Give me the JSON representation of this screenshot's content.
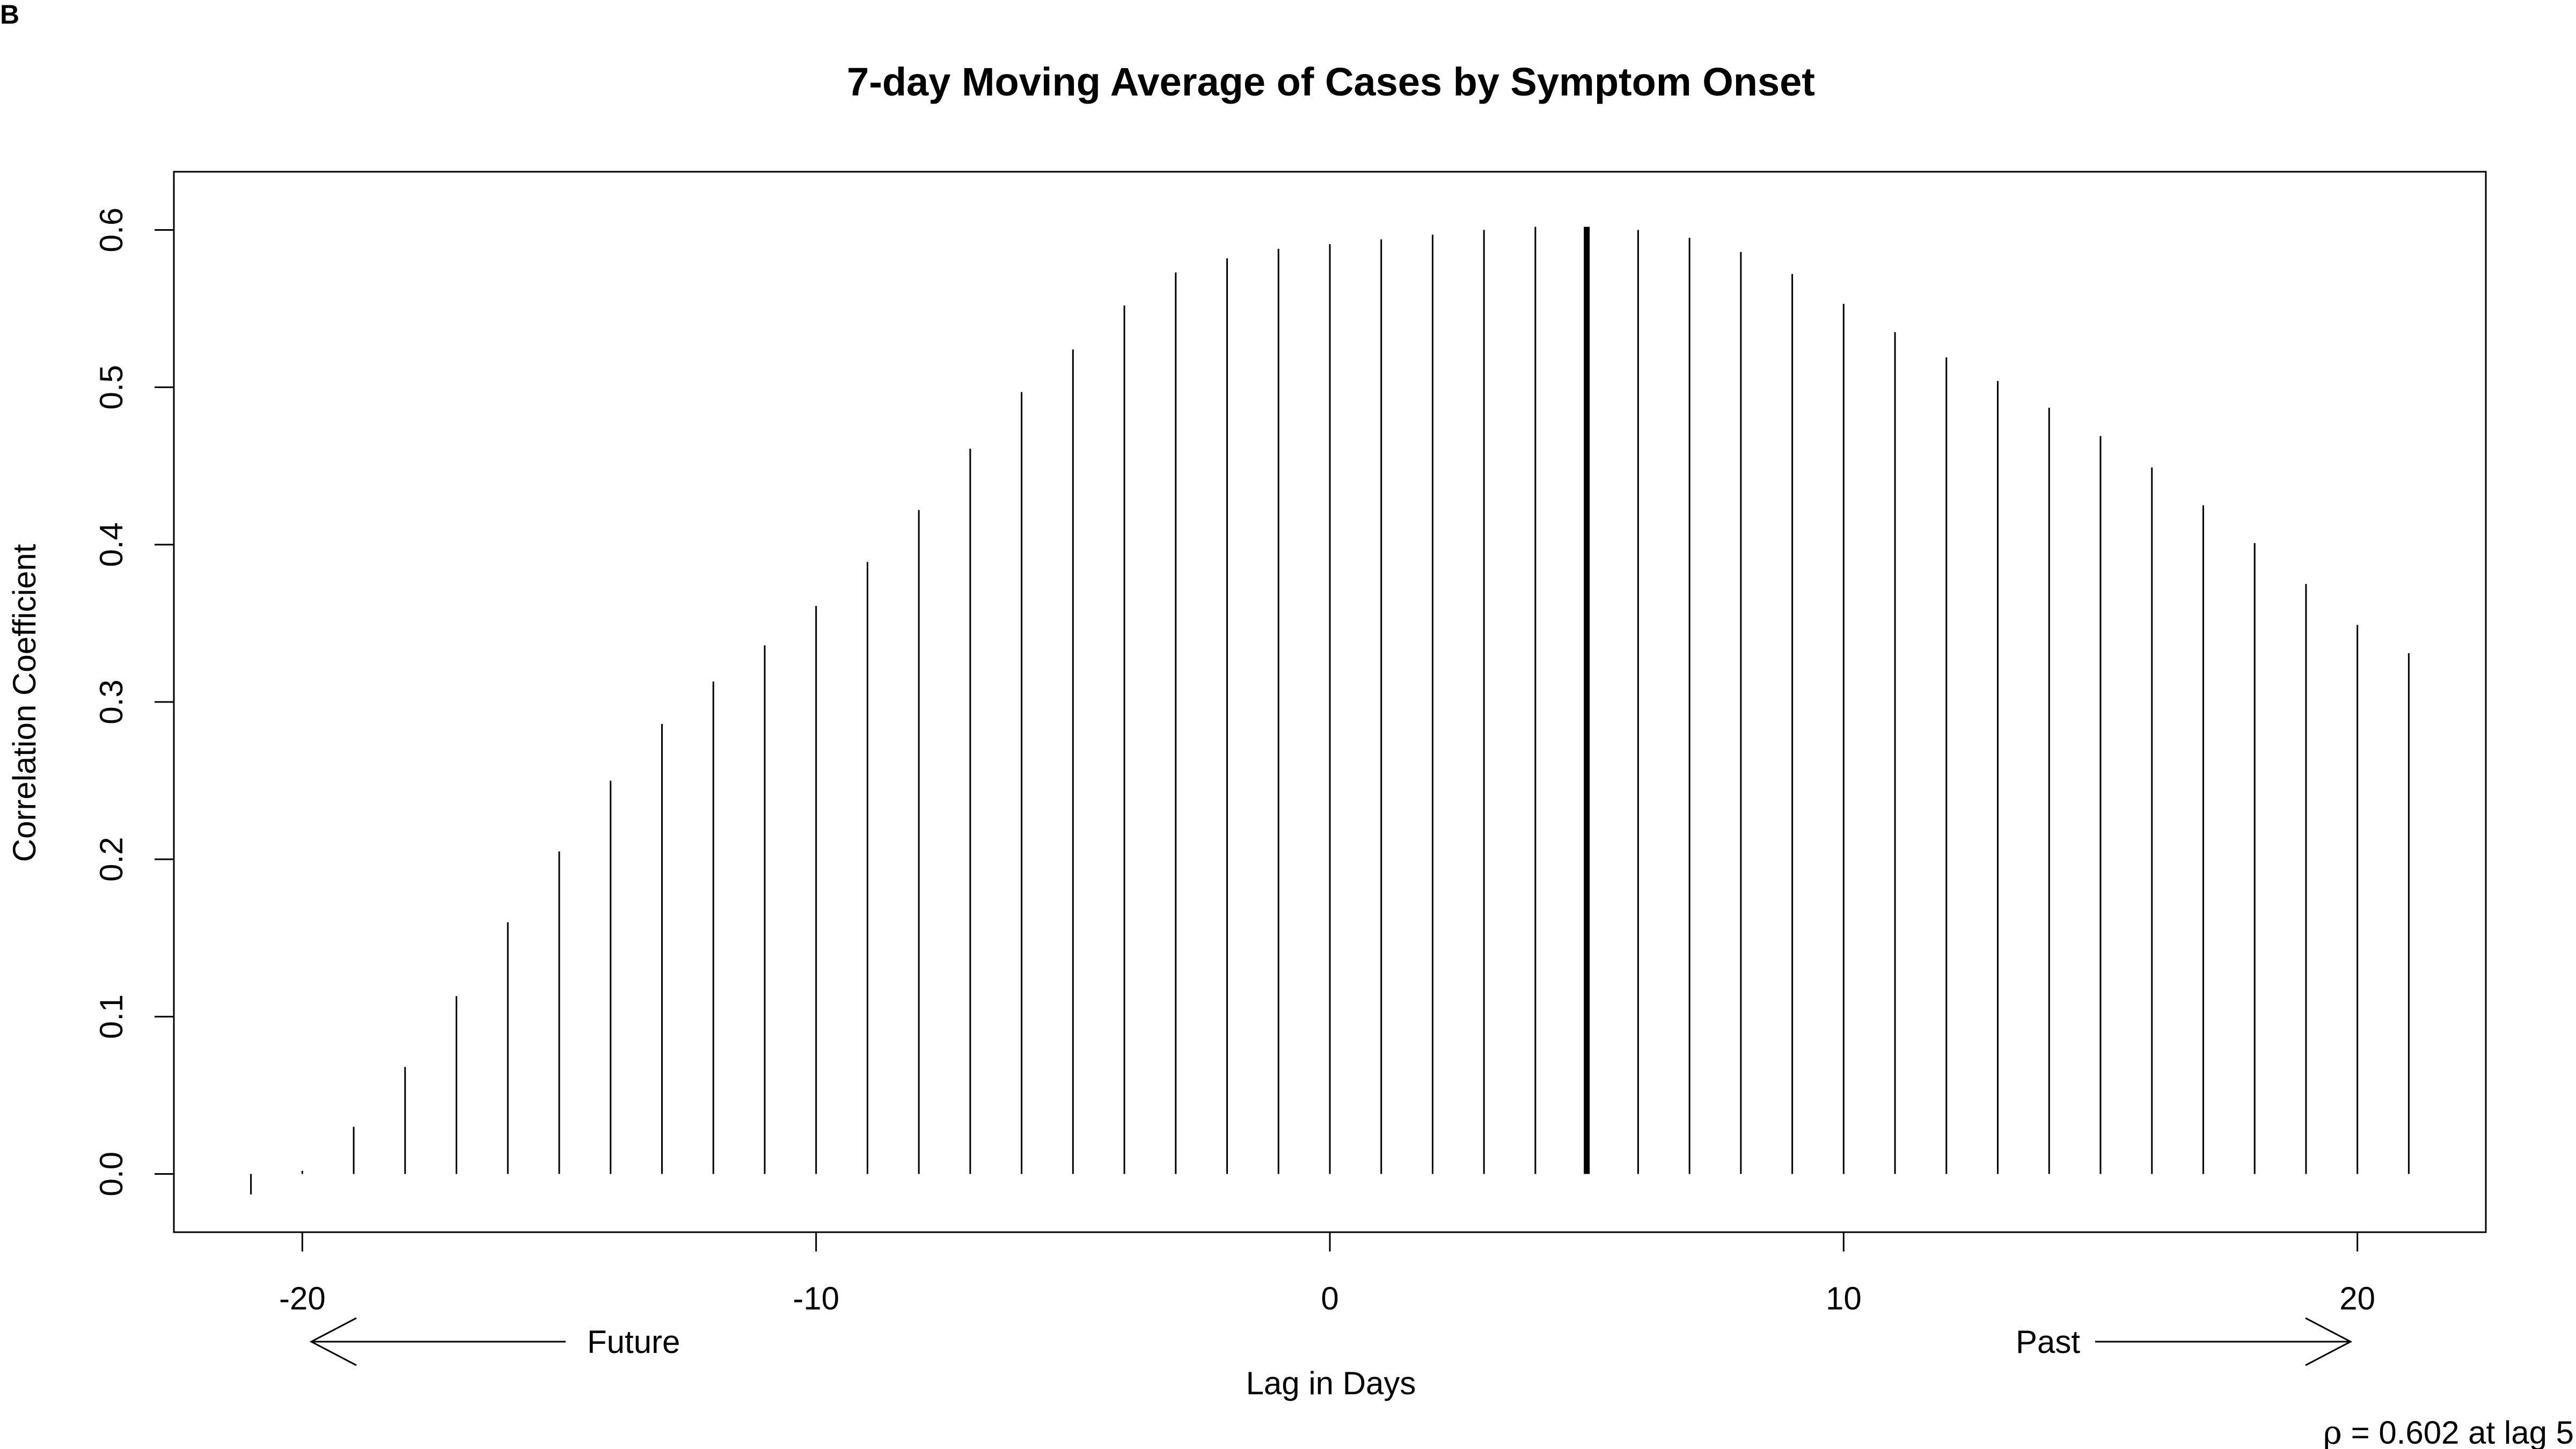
{
  "panel_label": "B",
  "chart_data": {
    "type": "bar",
    "title": "7-day Moving Average of Cases by Symptom Onset",
    "xlabel": "Lag in Days",
    "ylabel": "Correlation Coefficient",
    "xlim": [
      -22.5,
      22.5
    ],
    "ylim": [
      -0.037,
      0.637
    ],
    "x_ticks": [
      -20,
      -10,
      0,
      10,
      20
    ],
    "x_tick_labels": [
      "-20",
      "-10",
      "0",
      "10",
      "20"
    ],
    "y_ticks": [
      0.0,
      0.1,
      0.2,
      0.3,
      0.4,
      0.5,
      0.6
    ],
    "y_tick_labels": [
      "0.0",
      "0.1",
      "0.2",
      "0.3",
      "0.4",
      "0.5",
      "0.6"
    ],
    "grid": false,
    "lags": [
      -21,
      -20,
      -19,
      -18,
      -17,
      -16,
      -15,
      -14,
      -13,
      -12,
      -11,
      -10,
      -9,
      -8,
      -7,
      -6,
      -5,
      -4,
      -3,
      -2,
      -1,
      0,
      1,
      2,
      3,
      4,
      5,
      6,
      7,
      8,
      9,
      10,
      11,
      12,
      13,
      14,
      15,
      16,
      17,
      18,
      19,
      20,
      21
    ],
    "values": [
      -0.013,
      0.002,
      0.03,
      0.068,
      0.113,
      0.16,
      0.205,
      0.25,
      0.286,
      0.313,
      0.336,
      0.361,
      0.389,
      0.422,
      0.461,
      0.497,
      0.524,
      0.552,
      0.573,
      0.582,
      0.588,
      0.591,
      0.594,
      0.597,
      0.6,
      0.602,
      0.602,
      0.6,
      0.595,
      0.586,
      0.572,
      0.553,
      0.535,
      0.519,
      0.504,
      0.487,
      0.469,
      0.449,
      0.425,
      0.401,
      0.375,
      0.349,
      0.331
    ],
    "highlight_lag": 5,
    "annotations": {
      "future_label": "Future",
      "past_label": "Past",
      "rho_symbol": "ρ",
      "rho_text": " = 0.602 at lag 5"
    }
  }
}
